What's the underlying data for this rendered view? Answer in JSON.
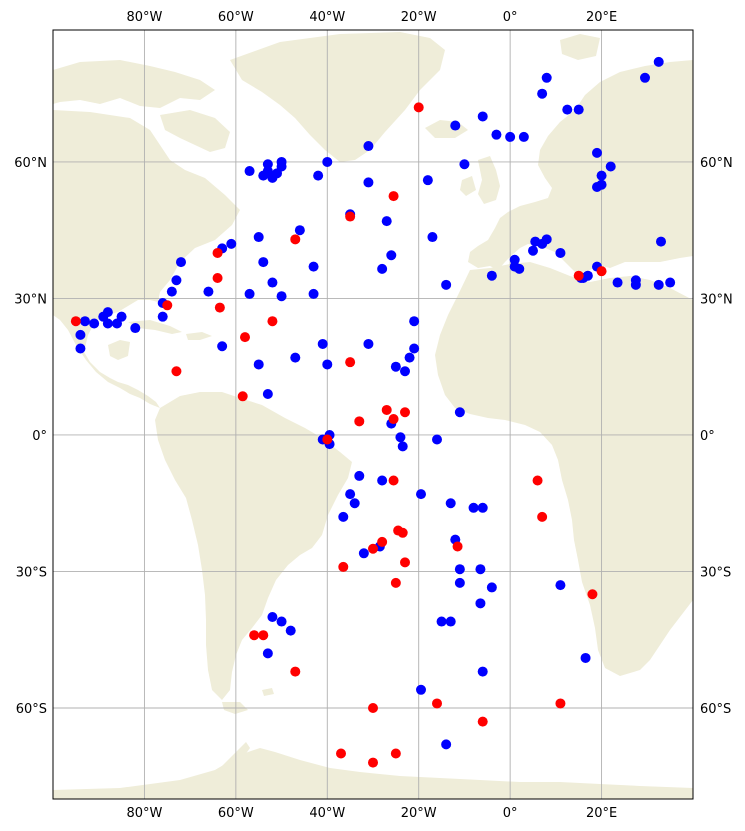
{
  "map": {
    "projection": "plate-carree",
    "extent": {
      "lon_min": -100,
      "lon_max": 40,
      "lat_min": -80,
      "lat_max": 89
    },
    "gridlines": true,
    "colors": {
      "background": "#ffffff",
      "land": "#efedd9",
      "grid": "#b0b0b0",
      "series_blue": "#0000ff",
      "series_red": "#ff0000"
    },
    "lon_ticks": [
      {
        "value": -80,
        "label": "80°W"
      },
      {
        "value": -60,
        "label": "60°W"
      },
      {
        "value": -40,
        "label": "40°W"
      },
      {
        "value": -20,
        "label": "20°W"
      },
      {
        "value": 0,
        "label": "0°"
      },
      {
        "value": 20,
        "label": "20°E"
      }
    ],
    "lat_ticks": [
      {
        "value": 60,
        "label": "60°N"
      },
      {
        "value": 30,
        "label": "30°N"
      },
      {
        "value": 0,
        "label": "0°"
      },
      {
        "value": -30,
        "label": "30°S"
      },
      {
        "value": -60,
        "label": "60°S"
      }
    ],
    "markers": {
      "blue": [
        [
          -94,
          22
        ],
        [
          -94,
          19
        ],
        [
          -93,
          25
        ],
        [
          -91,
          24.5
        ],
        [
          -89,
          26
        ],
        [
          -88,
          27
        ],
        [
          -88,
          24.5
        ],
        [
          -86,
          24.5
        ],
        [
          -85,
          26
        ],
        [
          -82,
          23.5
        ],
        [
          -76,
          29
        ],
        [
          -76,
          26
        ],
        [
          -74,
          31.5
        ],
        [
          -73,
          34
        ],
        [
          -72,
          38
        ],
        [
          -66,
          31.5
        ],
        [
          -63,
          41
        ],
        [
          -63,
          19.5
        ],
        [
          -61,
          42
        ],
        [
          -57,
          58
        ],
        [
          -57,
          31
        ],
        [
          -55,
          43.5
        ],
        [
          -54,
          57
        ],
        [
          -54,
          38
        ],
        [
          -53,
          59.5
        ],
        [
          -53,
          58
        ],
        [
          -52,
          56.5
        ],
        [
          -52,
          33.5
        ],
        [
          -51,
          57.5
        ],
        [
          -50,
          60
        ],
        [
          -50,
          59
        ],
        [
          -50,
          30.5
        ],
        [
          -55,
          15.5
        ],
        [
          -53,
          9
        ],
        [
          -46,
          45
        ],
        [
          -47,
          17
        ],
        [
          -43,
          37
        ],
        [
          -43,
          31
        ],
        [
          -42,
          57
        ],
        [
          -41,
          20
        ],
        [
          -40,
          60
        ],
        [
          -40,
          15.5
        ],
        [
          -35,
          48.5
        ],
        [
          -31,
          63.5
        ],
        [
          -31,
          55.5
        ],
        [
          -31,
          20
        ],
        [
          -28,
          36.5
        ],
        [
          -27,
          47
        ],
        [
          -26,
          39.5
        ],
        [
          -25,
          15
        ],
        [
          -23,
          14
        ],
        [
          -22,
          17
        ],
        [
          -21,
          19
        ],
        [
          -21,
          25
        ],
        [
          -18,
          56
        ],
        [
          -17,
          43.5
        ],
        [
          -16,
          -1
        ],
        [
          -14,
          33
        ],
        [
          -12,
          68
        ],
        [
          -11,
          5
        ],
        [
          -10,
          59.5
        ],
        [
          -6,
          70
        ],
        [
          -4,
          35
        ],
        [
          -3,
          66
        ],
        [
          0,
          65.5
        ],
        [
          1,
          38.5
        ],
        [
          1,
          37
        ],
        [
          2,
          36.5
        ],
        [
          3,
          65.5
        ],
        [
          5,
          40.5
        ],
        [
          5.5,
          42.5
        ],
        [
          7,
          42
        ],
        [
          7,
          75
        ],
        [
          8,
          43
        ],
        [
          8,
          78.5
        ],
        [
          11,
          40
        ],
        [
          12.5,
          71.5
        ],
        [
          15,
          71.5
        ],
        [
          15.5,
          34.5
        ],
        [
          16,
          34.5
        ],
        [
          17,
          35
        ],
        [
          19,
          62
        ],
        [
          19,
          37
        ],
        [
          19,
          54.5
        ],
        [
          20,
          55
        ],
        [
          20,
          57
        ],
        [
          22,
          59
        ],
        [
          23.5,
          33.5
        ],
        [
          27.5,
          33
        ],
        [
          27.5,
          34
        ],
        [
          29.5,
          78.5
        ],
        [
          32.5,
          82
        ],
        [
          32.5,
          33
        ],
        [
          33,
          42.5
        ],
        [
          35,
          33.5
        ],
        [
          -41,
          -1
        ],
        [
          -39.5,
          0
        ],
        [
          -39.5,
          -2
        ],
        [
          -26,
          2.5
        ],
        [
          -24,
          -0.5
        ],
        [
          -23.5,
          -2.5
        ],
        [
          -33,
          -9
        ],
        [
          -35,
          -13
        ],
        [
          -34,
          -15
        ],
        [
          -36.5,
          -18
        ],
        [
          -28,
          -10
        ],
        [
          -19.5,
          -13
        ],
        [
          -13,
          -15
        ],
        [
          -12,
          -23
        ],
        [
          -8,
          -16
        ],
        [
          -6,
          -16
        ],
        [
          -32,
          -26
        ],
        [
          -28.5,
          -24.5
        ],
        [
          -11,
          -29.5
        ],
        [
          -11,
          -32.5
        ],
        [
          -6.5,
          -29.5
        ],
        [
          -4,
          -33.5
        ],
        [
          -6.5,
          -37
        ],
        [
          11,
          -33
        ],
        [
          -15,
          -41
        ],
        [
          -13,
          -41
        ],
        [
          -52,
          -40
        ],
        [
          -50,
          -41
        ],
        [
          -48,
          -43
        ],
        [
          -53,
          -48
        ],
        [
          -6,
          -52
        ],
        [
          16.5,
          -49
        ],
        [
          -19.5,
          -56
        ],
        [
          -14,
          -68
        ]
      ],
      "red": [
        [
          -95,
          25
        ],
        [
          -75,
          28.5
        ],
        [
          -73,
          14
        ],
        [
          -64,
          40
        ],
        [
          -64,
          34.5
        ],
        [
          -63.5,
          28
        ],
        [
          -58,
          21.5
        ],
        [
          -58.5,
          8.5
        ],
        [
          -52,
          25
        ],
        [
          -47,
          43
        ],
        [
          -35,
          48
        ],
        [
          -35,
          16
        ],
        [
          -25.5,
          52.5
        ],
        [
          -20,
          72
        ],
        [
          -33,
          3
        ],
        [
          -27,
          5.5
        ],
        [
          -25.5,
          3.5
        ],
        [
          -23,
          5
        ],
        [
          -40,
          -1
        ],
        [
          -25.5,
          -10
        ],
        [
          6,
          -10
        ],
        [
          7,
          -18
        ],
        [
          -30,
          -25
        ],
        [
          -28,
          -23.5
        ],
        [
          -24.5,
          -21
        ],
        [
          -23.5,
          -21.5
        ],
        [
          -11.5,
          -24.5
        ],
        [
          -23,
          -28
        ],
        [
          -36.5,
          -29
        ],
        [
          -25,
          -32.5
        ],
        [
          18,
          -35
        ],
        [
          -54,
          -44
        ],
        [
          -47,
          -52
        ],
        [
          -30,
          -60
        ],
        [
          -16,
          -59
        ],
        [
          -6,
          -63
        ],
        [
          11,
          -59
        ],
        [
          -37,
          -70
        ],
        [
          -25,
          -70
        ],
        [
          -30,
          -72
        ],
        [
          15,
          35
        ],
        [
          20,
          36
        ],
        [
          -56,
          -44
        ]
      ]
    }
  }
}
